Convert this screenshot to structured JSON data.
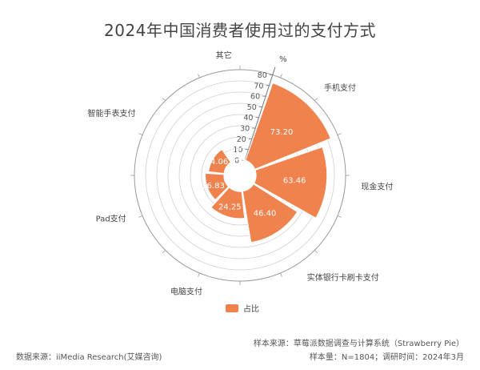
{
  "chart_data": {
    "type": "polar-bar",
    "title": "2024年中国消费者使用过的支付方式",
    "unit": "%",
    "radial_ticks": [
      0,
      10,
      20,
      30,
      40,
      50,
      60,
      70,
      80
    ],
    "radial_max": 80,
    "categories": [
      "手机支付",
      "现金支付",
      "实体银行卡刷卡支付",
      "电脑支付",
      "Pad支付",
      "智能手表支付",
      "其它"
    ],
    "series": [
      {
        "name": "占比",
        "values": [
          73.2,
          63.46,
          46.4,
          24.25,
          16.83,
          14.06,
          0.22
        ]
      }
    ],
    "value_labels": [
      "73.20",
      "63.46",
      "46.40",
      "24.25",
      "16.83",
      "14.06",
      "0.22"
    ],
    "legend_position": "bottom",
    "colors": {
      "bar": "#F0834D",
      "bar_stroke": "#ffffff",
      "axis": "#bbbbbb",
      "label": "#444444"
    }
  },
  "footer": {
    "source": "数据来源：iiMedia Research(艾媒咨询)",
    "sample_source": "样本来源：草莓派数据调查与计算系统（Strawberry Pie）",
    "sample_size": "样本量：N=1804；调研时间：2024年3月"
  }
}
